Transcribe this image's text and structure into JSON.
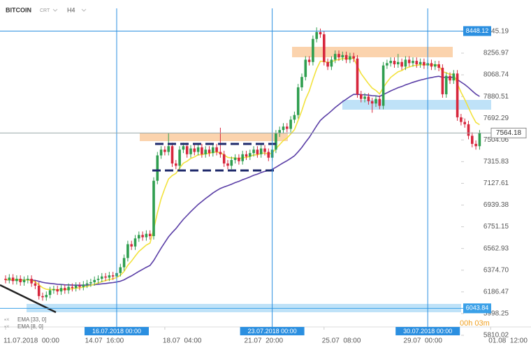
{
  "chart_data": {
    "type": "candlestick",
    "symbol": "BITCOIN",
    "instrument_type": "CRT",
    "timeframe": "H4",
    "countdown": "00h 03m",
    "up_color": "#2f9e4f",
    "down_color": "#d7263d",
    "open": [
      6300,
      6290,
      6310,
      6280,
      6300,
      6270,
      6290,
      6300,
      6260,
      6240,
      6150,
      6140,
      6160,
      6200,
      6210,
      6190,
      6220,
      6200,
      6230,
      6220,
      6240,
      6230,
      6250,
      6260,
      6270,
      6290,
      6300,
      6320,
      6310,
      6330,
      6320,
      6350,
      6400,
      6480,
      6600,
      6580,
      6650,
      6680,
      6660,
      6690,
      6670,
      7150,
      7370,
      7420,
      7400,
      7450,
      7300,
      7280,
      7420,
      7450,
      7380,
      7430,
      7400,
      7440,
      7380,
      7420,
      7390,
      7440,
      7400,
      7380,
      7300,
      7280,
      7330,
      7350,
      7320,
      7380,
      7360,
      7390,
      7420,
      7380,
      7430,
      7400,
      7350,
      7420,
      7560,
      7590,
      7620,
      7600,
      7680,
      7720,
      7960,
      8050,
      8200,
      8180,
      8380,
      8440,
      8420,
      8180,
      8140,
      8200,
      8250,
      8220,
      8240,
      8200,
      8230,
      8210,
      7900,
      7860,
      7880,
      7840,
      7820,
      7860,
      7800,
      8150,
      8170,
      8190,
      8160,
      8180,
      8140,
      8200,
      8170,
      8190,
      8160,
      8180,
      8150,
      8170,
      8140,
      8160,
      8130,
      7900,
      8060,
      8020,
      8080,
      7700,
      7660,
      7640,
      7540,
      7470,
      7450
    ],
    "high": [
      6330,
      6340,
      6340,
      6330,
      6330,
      6320,
      6330,
      6330,
      6290,
      6270,
      6180,
      6190,
      6230,
      6240,
      6240,
      6250,
      6250,
      6260,
      6260,
      6270,
      6270,
      6280,
      6290,
      6300,
      6320,
      6330,
      6350,
      6350,
      6360,
      6360,
      6380,
      6430,
      6510,
      6630,
      6630,
      6680,
      6710,
      6710,
      6720,
      6720,
      7180,
      7400,
      7450,
      7450,
      7560,
      7480,
      7330,
      7450,
      7480,
      7480,
      7460,
      7460,
      7470,
      7470,
      7450,
      7450,
      7470,
      7470,
      7610,
      7410,
      7330,
      7360,
      7380,
      7380,
      7410,
      7410,
      7420,
      7450,
      7450,
      7460,
      7460,
      7430,
      7450,
      7590,
      7620,
      7650,
      7650,
      7710,
      7750,
      7990,
      8080,
      8230,
      8230,
      8410,
      8480,
      8470,
      8450,
      8210,
      8230,
      8280,
      8280,
      8270,
      8270,
      8260,
      8260,
      8240,
      7930,
      7910,
      7910,
      7870,
      7890,
      7890,
      8180,
      8200,
      8220,
      8220,
      8250,
      8210,
      8230,
      8230,
      8220,
      8220,
      8210,
      8210,
      8200,
      8200,
      8190,
      8190,
      8160,
      8090,
      8090,
      8110,
      8110,
      7730,
      7690,
      7670,
      7570,
      7500,
      7590
    ],
    "low": [
      6260,
      6260,
      6250,
      6250,
      6240,
      6240,
      6260,
      6230,
      6210,
      6120,
      6110,
      6110,
      6130,
      6170,
      6160,
      6160,
      6170,
      6170,
      6190,
      6190,
      6200,
      6200,
      6220,
      6230,
      6240,
      6260,
      6270,
      6280,
      6280,
      6290,
      6290,
      6320,
      6370,
      6450,
      6550,
      6550,
      6620,
      6630,
      6630,
      6640,
      6640,
      7120,
      7340,
      7370,
      7370,
      7270,
      7250,
      7250,
      7390,
      7350,
      7350,
      7370,
      7370,
      7350,
      7350,
      7360,
      7360,
      7370,
      7350,
      7270,
      7250,
      7250,
      7300,
      7290,
      7290,
      7330,
      7330,
      7360,
      7350,
      7350,
      7370,
      7320,
      7320,
      7390,
      7530,
      7560,
      7570,
      7570,
      7650,
      7690,
      7930,
      8020,
      8150,
      8150,
      8350,
      8390,
      8150,
      8110,
      8110,
      8170,
      8190,
      8190,
      8170,
      8170,
      8180,
      7870,
      7830,
      7830,
      7810,
      7740,
      7790,
      7770,
      7770,
      8120,
      8140,
      8130,
      8130,
      8110,
      8110,
      8140,
      8140,
      8130,
      8130,
      8120,
      8120,
      8110,
      8110,
      8100,
      7870,
      7870,
      7990,
      7990,
      7670,
      7630,
      7610,
      7510,
      7440,
      7420,
      7420
    ],
    "close": [
      6290,
      6310,
      6280,
      6300,
      6270,
      6290,
      6300,
      6260,
      6240,
      6150,
      6140,
      6160,
      6200,
      6210,
      6190,
      6220,
      6200,
      6230,
      6220,
      6240,
      6230,
      6250,
      6260,
      6270,
      6290,
      6300,
      6320,
      6310,
      6330,
      6320,
      6350,
      6400,
      6480,
      6600,
      6580,
      6650,
      6680,
      6660,
      6690,
      6670,
      7150,
      7370,
      7420,
      7400,
      7450,
      7300,
      7280,
      7420,
      7450,
      7380,
      7430,
      7400,
      7440,
      7380,
      7420,
      7390,
      7440,
      7400,
      7380,
      7300,
      7280,
      7330,
      7350,
      7320,
      7380,
      7360,
      7390,
      7420,
      7380,
      7430,
      7400,
      7350,
      7420,
      7560,
      7590,
      7620,
      7600,
      7680,
      7720,
      7960,
      8050,
      8200,
      8180,
      8380,
      8440,
      8420,
      8180,
      8140,
      8200,
      8250,
      8220,
      8240,
      8200,
      8230,
      8210,
      7900,
      7860,
      7880,
      7840,
      7820,
      7860,
      7800,
      8150,
      8170,
      8190,
      8160,
      8180,
      8140,
      8200,
      8170,
      8190,
      8160,
      8180,
      8150,
      8170,
      8140,
      8160,
      8130,
      7900,
      8060,
      8020,
      8080,
      7700,
      7660,
      7640,
      7540,
      7470,
      7450,
      7564.18
    ],
    "ylim": [
      5749,
      8657
    ],
    "yticks": [
      8445.19,
      8256.97,
      8068.74,
      7880.51,
      7692.29,
      7504.06,
      7315.83,
      7127.61,
      6939.38,
      6751.15,
      6562.93,
      {
        "value": 6374.7,
        "label": "6374.70"
      },
      6186.47,
      5998.25,
      5810.02
    ],
    "xticks": [
      {
        "value": 0,
        "label": "11.07.2018  00:00"
      },
      {
        "value": 22,
        "label": "14.07  16:00"
      },
      {
        "value": 43,
        "label": "18.07  04:00"
      },
      {
        "value": 65,
        "label": "21.07  20:00"
      },
      {
        "value": 86,
        "label": "25.07  08:00"
      },
      {
        "value": 108,
        "label": "29.07  00:00"
      },
      {
        "value": 131,
        "label": "01.08  12:00"
      }
    ],
    "vlines": [
      {
        "index": 30,
        "label": "16.07.2018 00:00"
      },
      {
        "index": 72,
        "label": "23.07.2018 00:00"
      },
      {
        "index": 114,
        "label": "30.07.2018 00:00"
      }
    ],
    "hlines": [
      {
        "value": 8448.12,
        "color": "#2b8fe0"
      },
      {
        "value": 6043.84,
        "color": "#3aa0e8"
      }
    ],
    "indicators": [
      {
        "label": "EMA [33, 0]",
        "period": 33,
        "color": "#5a3ea6"
      },
      {
        "label": "EMA [8, 0]",
        "period": 8,
        "color": "#f2e23c"
      }
    ]
  }
}
